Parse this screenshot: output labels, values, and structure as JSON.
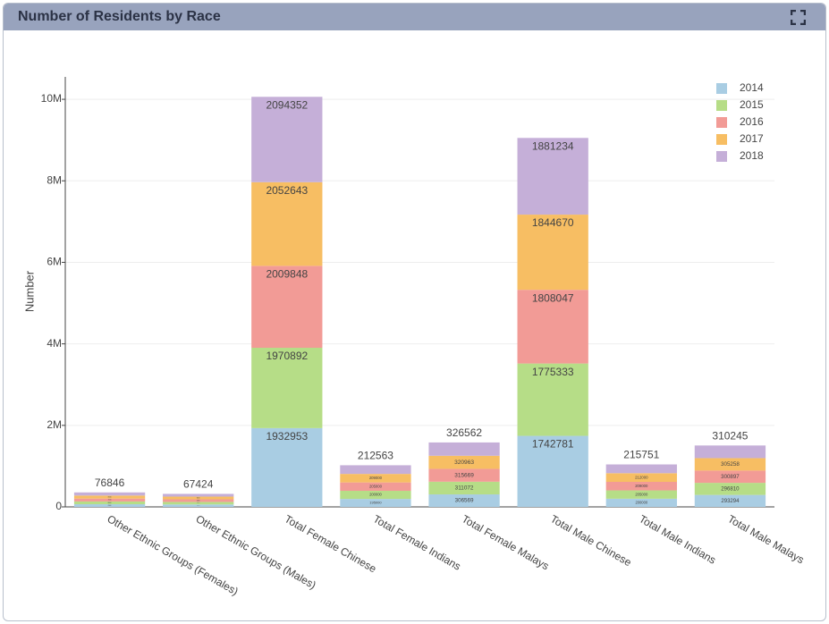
{
  "panel_title": "Number of Residents by Race",
  "chart_data": {
    "type": "stacked-bar",
    "ylabel": "Number",
    "categories": [
      "Other Ethnic Groups (Females)",
      "Other Ethnic Groups (Males)",
      "Total Female Chinese",
      "Total Female Indians",
      "Total Female Malays",
      "Total Male Chinese",
      "Total Male Indians",
      "Total Male Malays"
    ],
    "series": [
      {
        "name": "2014",
        "color": "#a9cde3",
        "values": [
          65000,
          60000,
          1932953,
          195000,
          306569,
          1742781,
          200000,
          293294
        ]
      },
      {
        "name": "2015",
        "color": "#b6dd87",
        "values": [
          68000,
          62000,
          1970892,
          200000,
          311072,
          1775333,
          205000,
          296810
        ]
      },
      {
        "name": "2016",
        "color": "#f29b96",
        "values": [
          71000,
          64000,
          2009848,
          205000,
          315669,
          1808047,
          209000,
          300897
        ]
      },
      {
        "name": "2017",
        "color": "#f7be63",
        "values": [
          74000,
          66000,
          2052643,
          209000,
          320963,
          1844670,
          212000,
          305258
        ]
      },
      {
        "name": "2018",
        "color": "#c5afd8",
        "values": [
          76846,
          67424,
          2094352,
          212563,
          326562,
          1881234,
          215751,
          310245
        ]
      }
    ],
    "ylim": [
      0,
      10550000
    ],
    "yticks": [
      0,
      {
        "value": 2000000,
        "label": "2M"
      },
      {
        "value": 4000000,
        "label": "4M"
      },
      {
        "value": 6000000,
        "label": "6M"
      },
      {
        "value": 8000000,
        "label": "8M"
      },
      {
        "value": 10000000,
        "label": "10M"
      }
    ],
    "grid": true,
    "legend": "top-right"
  }
}
